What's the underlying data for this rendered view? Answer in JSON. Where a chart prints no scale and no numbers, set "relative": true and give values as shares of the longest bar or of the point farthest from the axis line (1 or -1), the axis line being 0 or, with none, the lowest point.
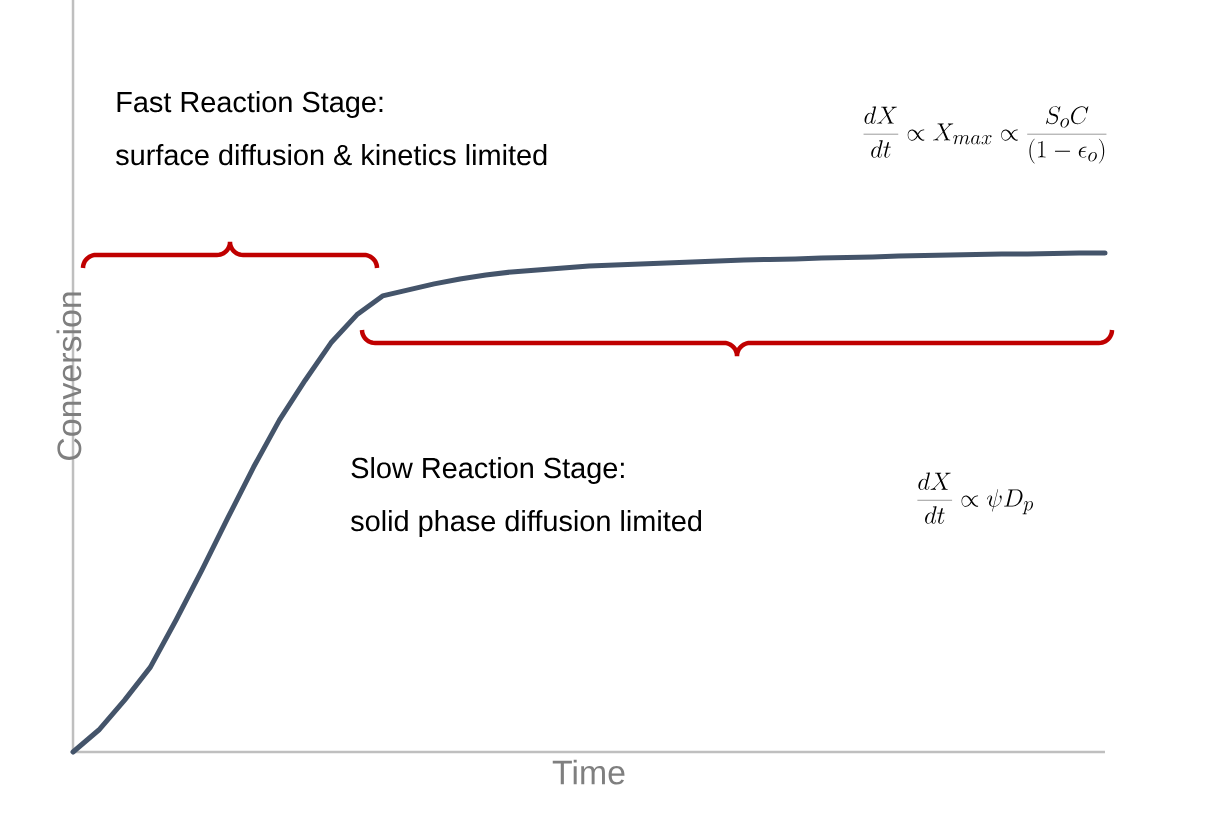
{
  "chart_data": {
    "type": "line",
    "relative": true,
    "xlabel": "Time",
    "ylabel": "Conversion",
    "color": "#44546a",
    "categories": [
      null,
      null,
      null,
      null,
      null,
      null,
      null,
      null,
      null,
      null,
      null,
      null,
      null,
      null,
      null,
      null,
      null,
      null,
      null,
      null,
      null,
      null,
      null,
      null,
      null,
      null,
      null,
      null,
      null,
      null,
      null,
      null,
      null,
      null,
      null,
      null,
      null,
      null,
      null,
      null,
      null
    ],
    "values": [
      0,
      0.044,
      0.104,
      0.17,
      0.265,
      0.365,
      0.469,
      0.571,
      0.665,
      0.745,
      0.82,
      0.876,
      0.914,
      0.926,
      0.938,
      0.948,
      0.956,
      0.962,
      0.966,
      0.97,
      0.974,
      0.976,
      0.978,
      0.98,
      0.982,
      0.984,
      0.986,
      0.987,
      0.988,
      0.99,
      0.991,
      0.992,
      0.994,
      0.995,
      0.996,
      0.997,
      0.998,
      0.998,
      0.999,
      1,
      1
    ],
    "annotations": [
      "Fast Reaction Stage:",
      "surface diffusion & kinetics limited",
      "\\frac{dX}{dt} \\propto X_{max} \\propto \\frac{S_o C}{(1-\\epsilon_o)}",
      "Slow Reaction Stage:",
      "solid phase diffusion limited",
      "\\frac{dX}{dt} \\propto \\psi D_p"
    ]
  }
}
